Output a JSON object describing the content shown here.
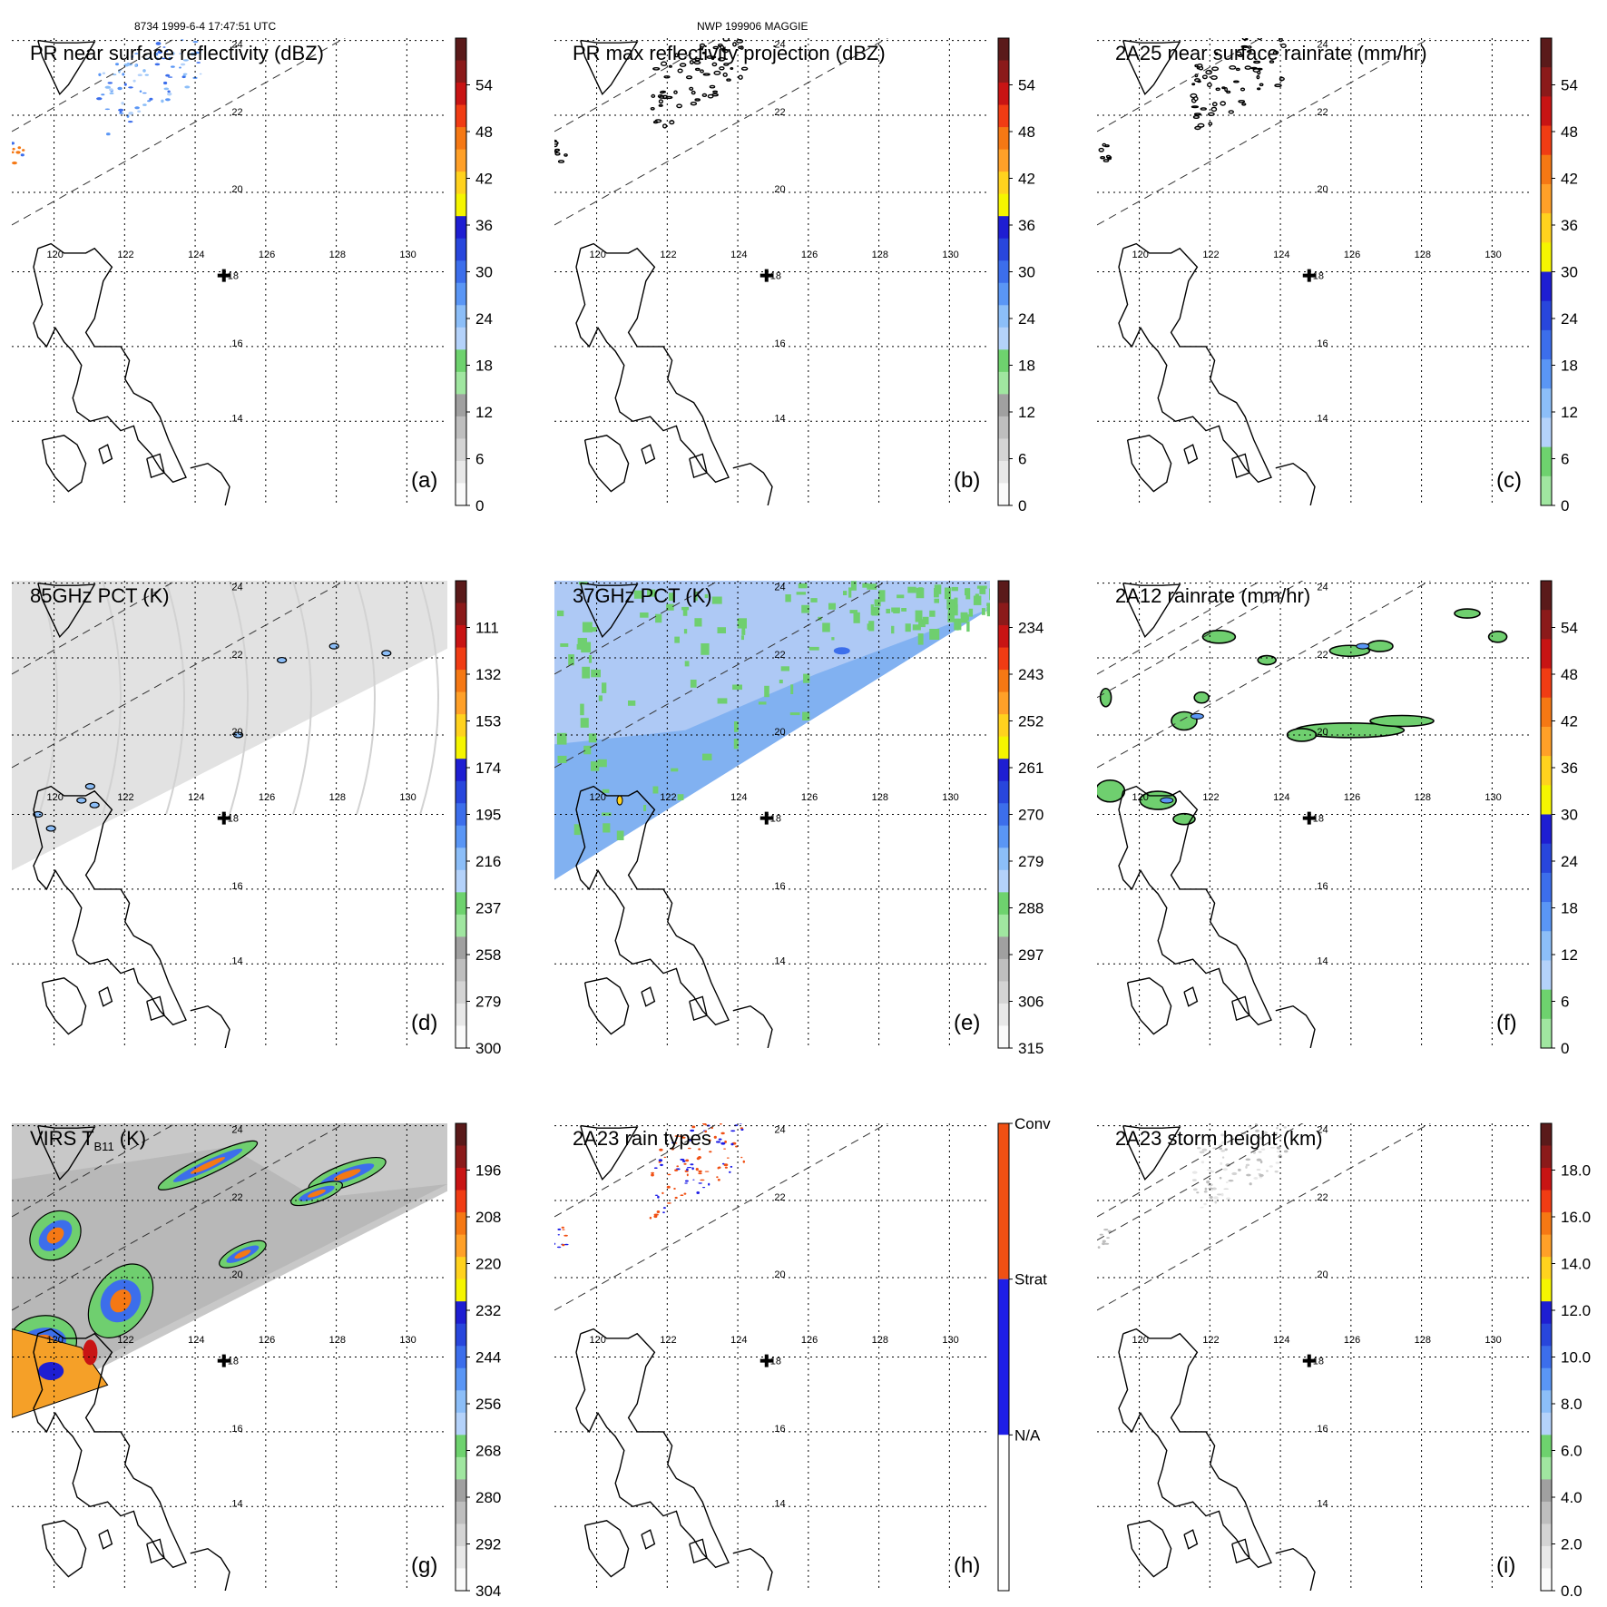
{
  "header": {
    "left_caption": "8734 1999-6-4 17:47:51 UTC",
    "center_caption": "NWP 199906 MAGGIE"
  },
  "map": {
    "lon_labels": [
      "120",
      "122",
      "124",
      "126",
      "128",
      "130"
    ],
    "lat_labels": [
      "24",
      "22",
      "20",
      "16",
      "14"
    ],
    "center_marker_label": "18"
  },
  "panels": [
    {
      "id": "a",
      "title": "PR near surface reflectivity (dBZ)",
      "letter": "(a)",
      "field": "pr_swath_sparse",
      "colorbar": {
        "ticks": [
          "54",
          "48",
          "42",
          "36",
          "30",
          "24",
          "18",
          "12",
          "6",
          "0"
        ],
        "colors": [
          "#5a1a1a",
          "#8b1a1a",
          "#c81414",
          "#f03c14",
          "#f57814",
          "#ffa028",
          "#ffd21e",
          "#f5f500",
          "#1e1ed2",
          "#2846dc",
          "#3c6eeb",
          "#5a96f5",
          "#8cbef8",
          "#b4d2fa",
          "#6ed26e",
          "#a0e6a0",
          "#a0a0a0",
          "#bebebe",
          "#d4d4d4",
          "#e8e8e8",
          "#fafafa"
        ]
      }
    },
    {
      "id": "b",
      "title": "PR max reflectivity projection (dBZ)",
      "letter": "(b)",
      "field": "pr_swath_contours",
      "colorbar": {
        "ticks": [
          "54",
          "48",
          "42",
          "36",
          "30",
          "24",
          "18",
          "12",
          "6",
          "0"
        ],
        "colors": [
          "#5a1a1a",
          "#8b1a1a",
          "#c81414",
          "#f03c14",
          "#f57814",
          "#ffa028",
          "#ffd21e",
          "#f5f500",
          "#1e1ed2",
          "#2846dc",
          "#3c6eeb",
          "#5a96f5",
          "#8cbef8",
          "#b4d2fa",
          "#6ed26e",
          "#a0e6a0",
          "#a0a0a0",
          "#bebebe",
          "#d4d4d4",
          "#e8e8e8",
          "#fafafa"
        ]
      }
    },
    {
      "id": "c",
      "title": "2A25 near surface rainrate (mm/hr)",
      "letter": "(c)",
      "field": "pr_swath_contours",
      "colorbar": {
        "ticks": [
          "54",
          "48",
          "42",
          "36",
          "30",
          "24",
          "18",
          "12",
          "6",
          "0"
        ],
        "colors": [
          "#5a1a1a",
          "#8b1a1a",
          "#c81414",
          "#f03c14",
          "#f57814",
          "#ffa028",
          "#ffd21e",
          "#f5f500",
          "#1e1ed2",
          "#2846dc",
          "#3c6eeb",
          "#5a96f5",
          "#8cbef8",
          "#b4d2fa",
          "#6ed26e",
          "#a0e6a0"
        ]
      }
    },
    {
      "id": "d",
      "title": "85GHz PCT (K)",
      "letter": "(d)",
      "field": "tmi_grey",
      "colorbar": {
        "ticks": [
          "111",
          "132",
          "153",
          "174",
          "195",
          "216",
          "237",
          "258",
          "279",
          "300"
        ],
        "colors": [
          "#5a1a1a",
          "#8b1a1a",
          "#c81414",
          "#f03c14",
          "#f57814",
          "#ffa028",
          "#ffd21e",
          "#f5f500",
          "#1e1ed2",
          "#2846dc",
          "#3c6eeb",
          "#5a96f5",
          "#8cbef8",
          "#b4d2fa",
          "#6ed26e",
          "#a0e6a0",
          "#a0a0a0",
          "#bebebe",
          "#d4d4d4",
          "#e8e8e8",
          "#fafafa"
        ]
      }
    },
    {
      "id": "e",
      "title": "37GHz PCT (K)",
      "letter": "(e)",
      "field": "tmi_blue",
      "colorbar": {
        "ticks": [
          "234",
          "243",
          "252",
          "261",
          "270",
          "279",
          "288",
          "297",
          "306",
          "315"
        ],
        "colors": [
          "#5a1a1a",
          "#8b1a1a",
          "#c81414",
          "#f03c14",
          "#f57814",
          "#ffa028",
          "#ffd21e",
          "#f5f500",
          "#1e1ed2",
          "#2846dc",
          "#3c6eeb",
          "#5a96f5",
          "#8cbef8",
          "#b4d2fa",
          "#6ed26e",
          "#a0e6a0",
          "#a0a0a0",
          "#bebebe",
          "#d4d4d4",
          "#e8e8e8",
          "#fafafa"
        ]
      }
    },
    {
      "id": "f",
      "title": "2A12 rainrate (mm/hr)",
      "letter": "(f)",
      "field": "tmi_rain",
      "colorbar": {
        "ticks": [
          "54",
          "48",
          "42",
          "36",
          "30",
          "24",
          "18",
          "12",
          "6",
          "0"
        ],
        "colors": [
          "#5a1a1a",
          "#8b1a1a",
          "#c81414",
          "#f03c14",
          "#f57814",
          "#ffa028",
          "#ffd21e",
          "#f5f500",
          "#1e1ed2",
          "#2846dc",
          "#3c6eeb",
          "#5a96f5",
          "#8cbef8",
          "#b4d2fa",
          "#6ed26e",
          "#a0e6a0"
        ]
      }
    },
    {
      "id": "g",
      "title": "VIRS T",
      "title_sub": "B11",
      "title_suffix": " (K)",
      "letter": "(g)",
      "field": "virs",
      "colorbar": {
        "ticks": [
          "196",
          "208",
          "220",
          "232",
          "244",
          "256",
          "268",
          "280",
          "292",
          "304"
        ],
        "colors": [
          "#5a1a1a",
          "#8b1a1a",
          "#c81414",
          "#f03c14",
          "#f57814",
          "#ffa028",
          "#ffd21e",
          "#f5f500",
          "#1e1ed2",
          "#2846dc",
          "#3c6eeb",
          "#5a96f5",
          "#8cbef8",
          "#b4d2fa",
          "#6ed26e",
          "#a0e6a0",
          "#a0a0a0",
          "#bebebe",
          "#d4d4d4",
          "#e8e8e8",
          "#fafafa"
        ]
      }
    },
    {
      "id": "h",
      "title": "2A23 rain types",
      "letter": "(h)",
      "field": "rain_types",
      "colorbar": {
        "categorical": true,
        "labels": [
          "Conv",
          "Strat",
          "N/A"
        ],
        "colors": [
          "#f05014",
          "#1e1ee6",
          "#ffffff"
        ]
      }
    },
    {
      "id": "i",
      "title": "2A23 storm height (km)",
      "letter": "(i)",
      "field": "storm_height",
      "colorbar": {
        "ticks": [
          "18.0",
          "16.0",
          "14.0",
          "12.0",
          "10.0",
          "8.0",
          "6.0",
          "4.0",
          "2.0",
          "0.0"
        ],
        "colors": [
          "#5a1a1a",
          "#8b1a1a",
          "#c81414",
          "#f03c14",
          "#f57814",
          "#ffa028",
          "#ffd21e",
          "#f5f500",
          "#1e1ed2",
          "#2846dc",
          "#3c6eeb",
          "#5a96f5",
          "#8cbef8",
          "#b4d2fa",
          "#6ed26e",
          "#a0e6a0",
          "#a0a0a0",
          "#bebebe",
          "#d4d4d4",
          "#e8e8e8",
          "#fafafa"
        ]
      }
    }
  ]
}
